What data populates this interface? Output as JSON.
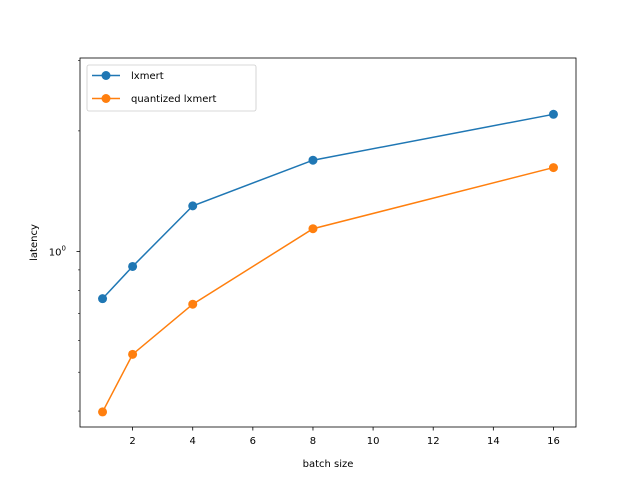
{
  "chart_data": {
    "type": "line",
    "xlabel": "batch size",
    "ylabel": "latency",
    "xlim": [
      0.25,
      16.75
    ],
    "ylim": [
      0.365,
      3.04
    ],
    "yscale": "log",
    "grid": false,
    "legend_position": "top-left",
    "x_ticks": [
      2,
      4,
      6,
      8,
      10,
      12,
      14,
      16
    ],
    "x_tick_labels": [
      "2",
      "4",
      "6",
      "8",
      "10",
      "12",
      "14",
      "16"
    ],
    "y_ticks": [
      1
    ],
    "y_tick_labels": [
      "10",
      "0"
    ],
    "x": [
      1,
      2,
      4,
      8,
      16
    ],
    "series": [
      {
        "name": "lxmert",
        "color": "#1f77b4",
        "values": [
          0.763,
          0.918,
          1.3,
          1.69,
          2.2
        ]
      },
      {
        "name": "quantized lxmert",
        "color": "#ff7f0e",
        "values": [
          0.398,
          0.554,
          0.739,
          1.14,
          1.62
        ]
      }
    ]
  }
}
